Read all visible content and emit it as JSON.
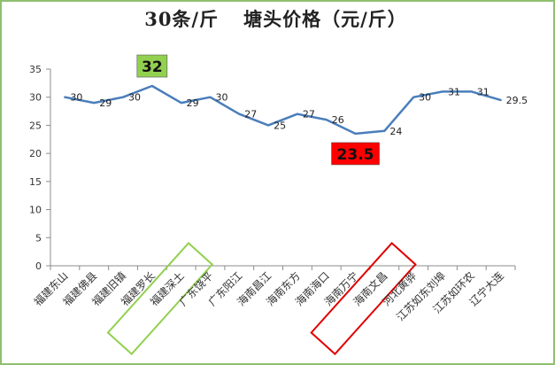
{
  "chart_data": {
    "type": "line",
    "title": "30条/斤",
    "subtitle": "塘头价格（元/斤）",
    "xlabel": "",
    "ylabel": "",
    "ylim": [
      0,
      35
    ],
    "yticks": [
      0,
      5,
      10,
      15,
      20,
      25,
      30,
      35
    ],
    "grid": false,
    "categories": [
      "福建东山",
      "福建佛县",
      "福建旧镇",
      "福建罗长",
      "福建深土",
      "广东饶平",
      "广东阳江",
      "海南昌江",
      "海南东方",
      "海南海口",
      "海南万宁",
      "海南文昌",
      "河北黄骅",
      "江苏如东刘埠",
      "江苏如环农",
      "辽宁大连"
    ],
    "series": [
      {
        "name": "塘头价格",
        "color": "#4a7ebb",
        "values": [
          30,
          29,
          30,
          32,
          29,
          30,
          27,
          25,
          27,
          26,
          23.5,
          24,
          30,
          31,
          31,
          29.5
        ],
        "labels": [
          "30",
          "29",
          "30",
          "32",
          "29",
          "30",
          "27",
          "25",
          "27",
          "26",
          "23.5",
          "24",
          "30",
          "31",
          "31",
          "29.5"
        ]
      }
    ],
    "highlights": [
      {
        "index": 3,
        "label": "32",
        "fill": "#92d050",
        "frame_color": "#92d050",
        "text_color": "#111111"
      },
      {
        "index": 10,
        "label": "23.5",
        "fill": "#ff0000",
        "frame_color": "#e00000",
        "text_color": "#111111"
      }
    ]
  }
}
